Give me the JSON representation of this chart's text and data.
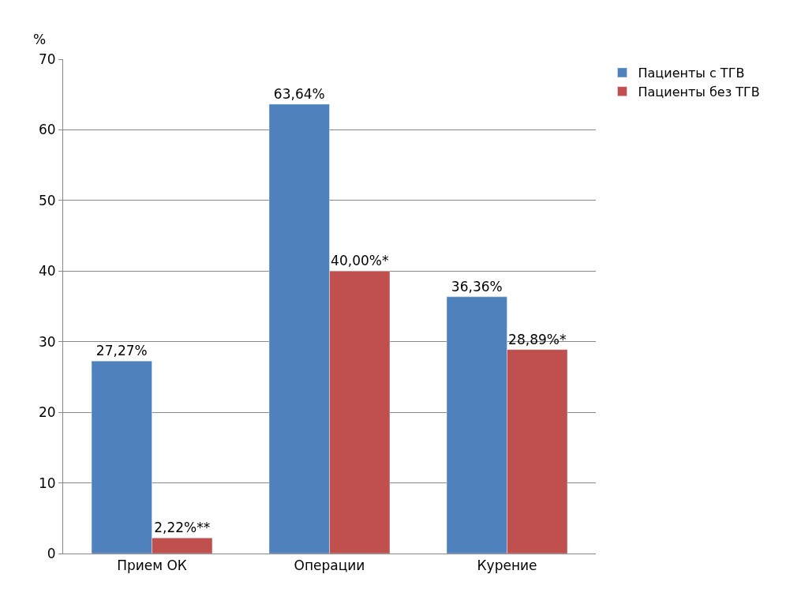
{
  "chart_data": {
    "type": "bar",
    "ylabel": "%",
    "categories": [
      "Прием ОК",
      "Операции",
      "Курение"
    ],
    "series": [
      {
        "name": "Пациенты с ТГВ",
        "color": "#4f81bd",
        "values": [
          27.27,
          63.64,
          36.36
        ],
        "value_labels": [
          "27,27%",
          "63,64%",
          "36,36%"
        ]
      },
      {
        "name": "Пациенты без ТГВ",
        "color": "#c0504d",
        "values": [
          2.22,
          40.0,
          28.89
        ],
        "value_labels": [
          "2,22%**",
          "40,00%*",
          "28,89%*"
        ]
      }
    ],
    "ylim": [
      0,
      70
    ],
    "yticks": [
      0,
      10,
      20,
      30,
      40,
      50,
      60,
      70
    ],
    "grid": "y",
    "legend": "top right"
  }
}
